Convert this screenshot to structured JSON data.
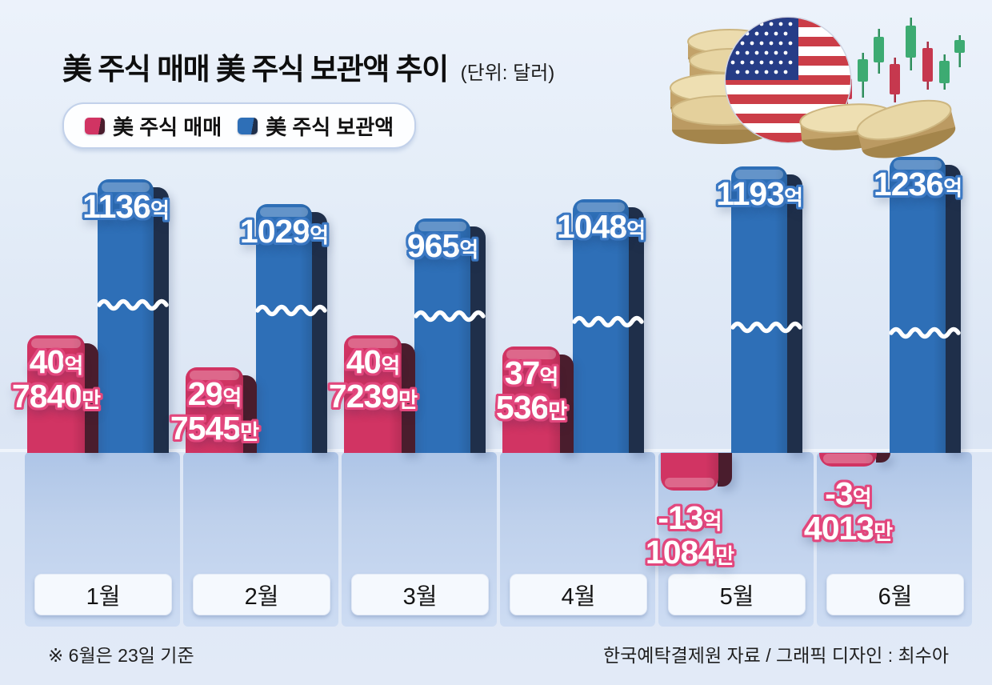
{
  "title": {
    "main": "美 주식 매매 美 주식 보관액 추이",
    "unit": "(단위: 달러)"
  },
  "legend": {
    "items": [
      {
        "label": "美 주식 매매",
        "color": "#d13463",
        "side_color": "#4a1d2d"
      },
      {
        "label": "美 주식 보관액",
        "color": "#2e6fb7",
        "side_color": "#1f2f4a"
      }
    ]
  },
  "illustration": {
    "alt": "us-flag-coin-with-gold-coins-and-candlestick-chart"
  },
  "footer": {
    "note": "※ 6월은 23일 기준",
    "credit": "한국예탁결제원 자료 / 그래픽 디자인 : 최수아"
  },
  "chart_data": {
    "type": "bar",
    "title": "美 주식 매매 美 주식 보관액 추이",
    "unit": "달러",
    "categories": [
      "1월",
      "2월",
      "3월",
      "4월",
      "5월",
      "6월"
    ],
    "series": [
      {
        "name": "美 주식 매매",
        "color": "#d13463",
        "side_color": "#4a1d2d",
        "outline": "#e2477d",
        "unit": "억 달러",
        "values": [
          {
            "eok": 40.784,
            "parts": [
              {
                "num": "40",
                "suffix": "억"
              },
              {
                "num": "7840",
                "suffix": "만"
              }
            ]
          },
          {
            "eok": 29.7545,
            "parts": [
              {
                "num": "29",
                "suffix": "억"
              },
              {
                "num": "7545",
                "suffix": "만"
              }
            ]
          },
          {
            "eok": 40.7239,
            "parts": [
              {
                "num": "40",
                "suffix": "억"
              },
              {
                "num": "7239",
                "suffix": "만"
              }
            ]
          },
          {
            "eok": 37.0536,
            "parts": [
              {
                "num": "37",
                "suffix": "억"
              },
              {
                "num": "536",
                "suffix": "만"
              }
            ]
          },
          {
            "eok": -13.1084,
            "parts": [
              {
                "num": "-13",
                "suffix": "억"
              },
              {
                "num": "1084",
                "suffix": "만"
              }
            ]
          },
          {
            "eok": -3.4013,
            "parts": [
              {
                "num": "-3",
                "suffix": "억"
              },
              {
                "num": "4013",
                "suffix": "만"
              }
            ]
          }
        ]
      },
      {
        "name": "美 주식 보관액",
        "color": "#2e6fb7",
        "side_color": "#1f2f4a",
        "outline": "#3b78c3",
        "unit": "억 달러",
        "axis_break": true,
        "values": [
          {
            "eok": 1136,
            "parts": [
              {
                "num": "1136",
                "suffix": "억"
              }
            ]
          },
          {
            "eok": 1029,
            "parts": [
              {
                "num": "1029",
                "suffix": "억"
              }
            ]
          },
          {
            "eok": 965,
            "parts": [
              {
                "num": "965",
                "suffix": "억"
              }
            ]
          },
          {
            "eok": 1048,
            "parts": [
              {
                "num": "1048",
                "suffix": "억"
              }
            ]
          },
          {
            "eok": 1193,
            "parts": [
              {
                "num": "1193",
                "suffix": "억"
              }
            ]
          },
          {
            "eok": 1236,
            "parts": [
              {
                "num": "1236",
                "suffix": "억"
              }
            ]
          }
        ]
      }
    ],
    "layout": {
      "legend_position": "top-left",
      "grid": false,
      "note": "storage bars drawn with axis-break wave; May/June trade bars are negative"
    }
  }
}
